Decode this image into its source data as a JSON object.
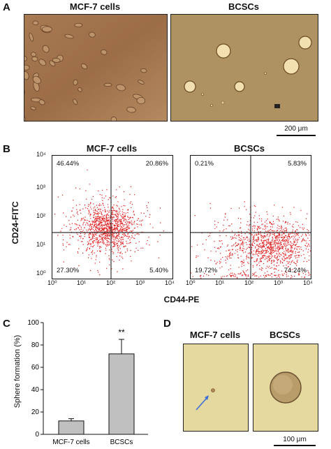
{
  "panel_a": {
    "letter": "A",
    "left_title": "MCF-7 cells",
    "right_title": "BCSCs",
    "scale_label": "200 μm"
  },
  "panel_b": {
    "letter": "B",
    "left_title": "MCF-7 cells",
    "right_title": "BCSCs",
    "y_label": "CD24-FITC",
    "x_label": "CD44-PE",
    "ticks": [
      "10⁰",
      "10¹",
      "10²",
      "10³",
      "10⁴"
    ],
    "left_quadrants": {
      "ul": "46.44%",
      "ur": "20.86%",
      "ll": "27.30%",
      "lr": "5.40%"
    },
    "right_quadrants": {
      "ul": "0.21%",
      "ur": "5.83%",
      "ll": "19.72%",
      "lr": "74.24%"
    },
    "dot_color": "#e02020"
  },
  "panel_c": {
    "letter": "C",
    "y_label": "Sphere formation (%)",
    "significance": "**"
  },
  "panel_d": {
    "letter": "D",
    "left_title": "MCF-7 cells",
    "right_title": "BCSCs",
    "scale_label": "100 μm"
  },
  "chart_data": {
    "type": "bar",
    "categories": [
      "MCF-7 cells",
      "BCSCs"
    ],
    "values": [
      12,
      72
    ],
    "errors": [
      2,
      13
    ],
    "ylabel": "Sphere formation (%)",
    "ylim": [
      0,
      100
    ],
    "yticks": [
      "0",
      "20",
      "40",
      "60",
      "80",
      "100"
    ],
    "bar_color": "#c0c0c0"
  }
}
